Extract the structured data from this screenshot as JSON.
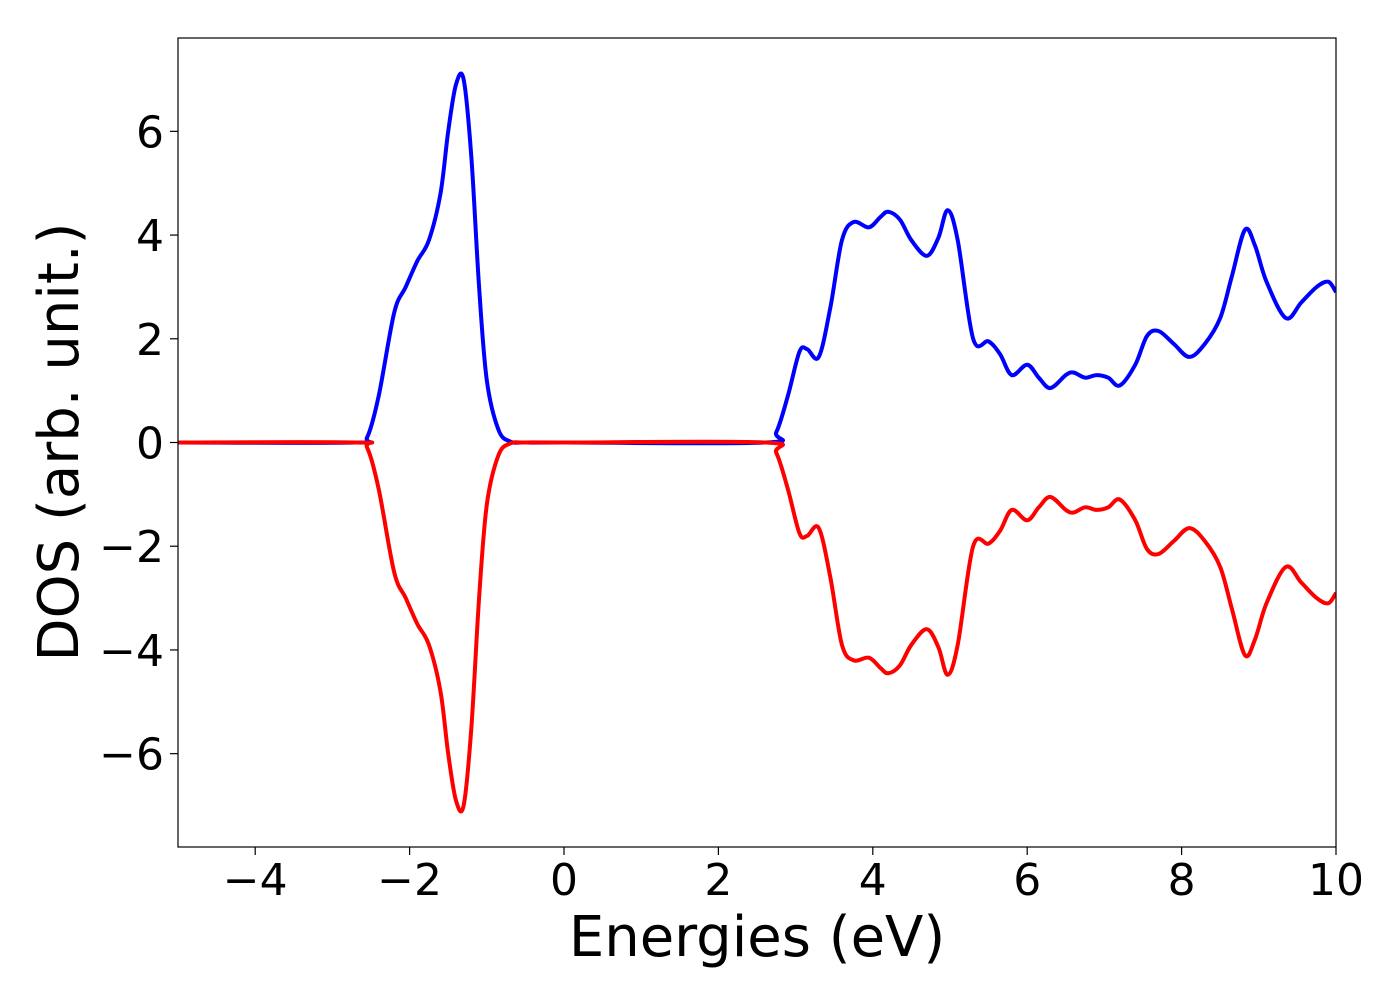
{
  "chart_data": {
    "type": "line",
    "xlabel": "Energies (eV)",
    "ylabel": "DOS (arb. unit.)",
    "xlim": [
      -5,
      10
    ],
    "ylim": [
      -7.8,
      7.8
    ],
    "xticks": [
      -4,
      -2,
      0,
      2,
      4,
      6,
      8,
      10
    ],
    "xtick_labels": [
      "−4",
      "−2",
      "0",
      "2",
      "4",
      "6",
      "8",
      "10"
    ],
    "yticks": [
      -6,
      -4,
      -2,
      0,
      2,
      4,
      6
    ],
    "ytick_labels": [
      "−6",
      "−4",
      "−2",
      "0",
      "2",
      "4",
      "6"
    ],
    "grid": false,
    "legend": "none",
    "series": [
      {
        "color": "#0000ff",
        "x": [
          -5,
          -2.7,
          -2.55,
          -2.4,
          -2.2,
          -2.05,
          -1.9,
          -1.75,
          -1.6,
          -1.5,
          -1.4,
          -1.3,
          -1.2,
          -1.1,
          -1.0,
          -0.85,
          -0.7,
          -0.5,
          0,
          2.6,
          2.75,
          2.9,
          3.05,
          3.15,
          3.3,
          3.45,
          3.6,
          3.75,
          3.95,
          4.1,
          4.2,
          4.35,
          4.5,
          4.7,
          4.85,
          4.97,
          5.1,
          5.3,
          5.5,
          5.65,
          5.8,
          6.0,
          6.15,
          6.3,
          6.5,
          6.6,
          6.75,
          6.9,
          7.05,
          7.2,
          7.4,
          7.55,
          7.7,
          7.9,
          8.1,
          8.3,
          8.5,
          8.65,
          8.82,
          8.95,
          9.1,
          9.35,
          9.55,
          9.75,
          9.9,
          10.0
        ],
        "y": [
          0,
          0,
          0.1,
          0.9,
          2.5,
          3.0,
          3.5,
          3.9,
          4.8,
          6.0,
          6.9,
          7.0,
          5.5,
          3.0,
          1.2,
          0.25,
          0.02,
          0,
          0,
          0,
          0.2,
          0.9,
          1.75,
          1.8,
          1.65,
          2.6,
          3.9,
          4.25,
          4.15,
          4.35,
          4.45,
          4.3,
          3.9,
          3.6,
          3.95,
          4.48,
          3.9,
          2.0,
          1.95,
          1.7,
          1.3,
          1.5,
          1.25,
          1.05,
          1.3,
          1.35,
          1.25,
          1.3,
          1.25,
          1.1,
          1.5,
          2.05,
          2.15,
          1.9,
          1.65,
          1.9,
          2.4,
          3.2,
          4.1,
          3.8,
          3.1,
          2.4,
          2.7,
          3.0,
          3.1,
          2.9
        ]
      },
      {
        "color": "#ff0000",
        "x": [
          -5,
          -2.7,
          -2.55,
          -2.4,
          -2.2,
          -2.05,
          -1.9,
          -1.75,
          -1.6,
          -1.5,
          -1.4,
          -1.3,
          -1.2,
          -1.1,
          -1.0,
          -0.85,
          -0.7,
          -0.5,
          0,
          2.6,
          2.75,
          2.9,
          3.05,
          3.15,
          3.3,
          3.45,
          3.6,
          3.75,
          3.95,
          4.1,
          4.2,
          4.35,
          4.5,
          4.7,
          4.85,
          4.97,
          5.1,
          5.3,
          5.5,
          5.65,
          5.8,
          6.0,
          6.15,
          6.3,
          6.5,
          6.6,
          6.75,
          6.9,
          7.05,
          7.2,
          7.4,
          7.55,
          7.7,
          7.9,
          8.1,
          8.3,
          8.5,
          8.65,
          8.82,
          8.95,
          9.1,
          9.35,
          9.55,
          9.75,
          9.9,
          10.0
        ],
        "y": [
          0,
          0,
          -0.1,
          -0.9,
          -2.5,
          -3.0,
          -3.5,
          -3.9,
          -4.8,
          -6.0,
          -6.9,
          -7.0,
          -5.5,
          -3.0,
          -1.2,
          -0.25,
          -0.02,
          0,
          0,
          0,
          -0.2,
          -0.9,
          -1.75,
          -1.8,
          -1.65,
          -2.6,
          -3.9,
          -4.2,
          -4.15,
          -4.35,
          -4.45,
          -4.3,
          -3.9,
          -3.6,
          -3.95,
          -4.48,
          -3.9,
          -2.0,
          -1.95,
          -1.7,
          -1.3,
          -1.5,
          -1.25,
          -1.05,
          -1.3,
          -1.35,
          -1.25,
          -1.3,
          -1.25,
          -1.1,
          -1.5,
          -2.05,
          -2.15,
          -1.9,
          -1.65,
          -1.9,
          -2.4,
          -3.2,
          -4.1,
          -3.8,
          -3.1,
          -2.4,
          -2.7,
          -3.0,
          -3.1,
          -2.9
        ]
      }
    ]
  }
}
